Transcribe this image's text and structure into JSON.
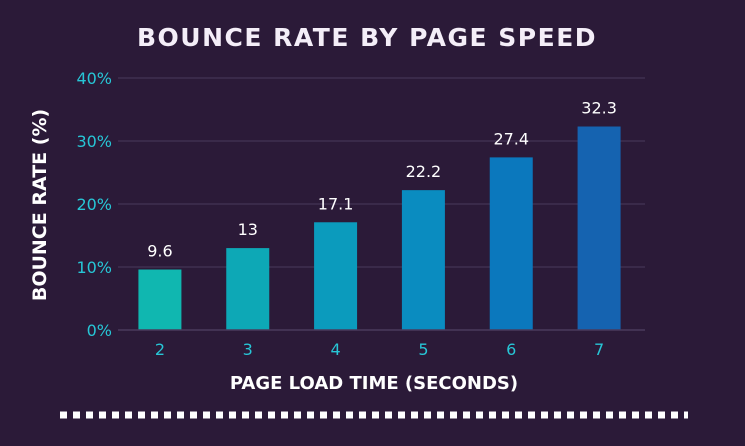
{
  "chart_data": {
    "type": "bar",
    "title": "BOUNCE RATE BY PAGE SPEED",
    "xlabel": "PAGE LOAD TIME (SECONDS)",
    "ylabel": "BOUNCE RATE (%)",
    "categories": [
      "2",
      "3",
      "4",
      "5",
      "6",
      "7"
    ],
    "values": [
      9.6,
      13,
      17.1,
      22.2,
      27.4,
      32.3
    ],
    "value_labels": [
      "9.6",
      "13",
      "17.1",
      "22.2",
      "27.4",
      "32.3"
    ],
    "ylim": [
      0,
      40
    ],
    "yticks": [
      0,
      10,
      20,
      30,
      40
    ],
    "ytick_labels": [
      "0%",
      "10%",
      "20%",
      "30%",
      "40%"
    ],
    "grid": true,
    "legend": "none",
    "bar_colors": [
      "#10b7b0",
      "#0da8b6",
      "#0b9bbd",
      "#0a8cc0",
      "#0b78bd",
      "#1563b0"
    ],
    "colors": {
      "background": "#2b1a38",
      "grid": "#4a3a5c",
      "tick_text": "#27c6d6",
      "title_text": "#f4eef8",
      "label_text": "#ffffff",
      "divider": "#ffffff"
    }
  }
}
